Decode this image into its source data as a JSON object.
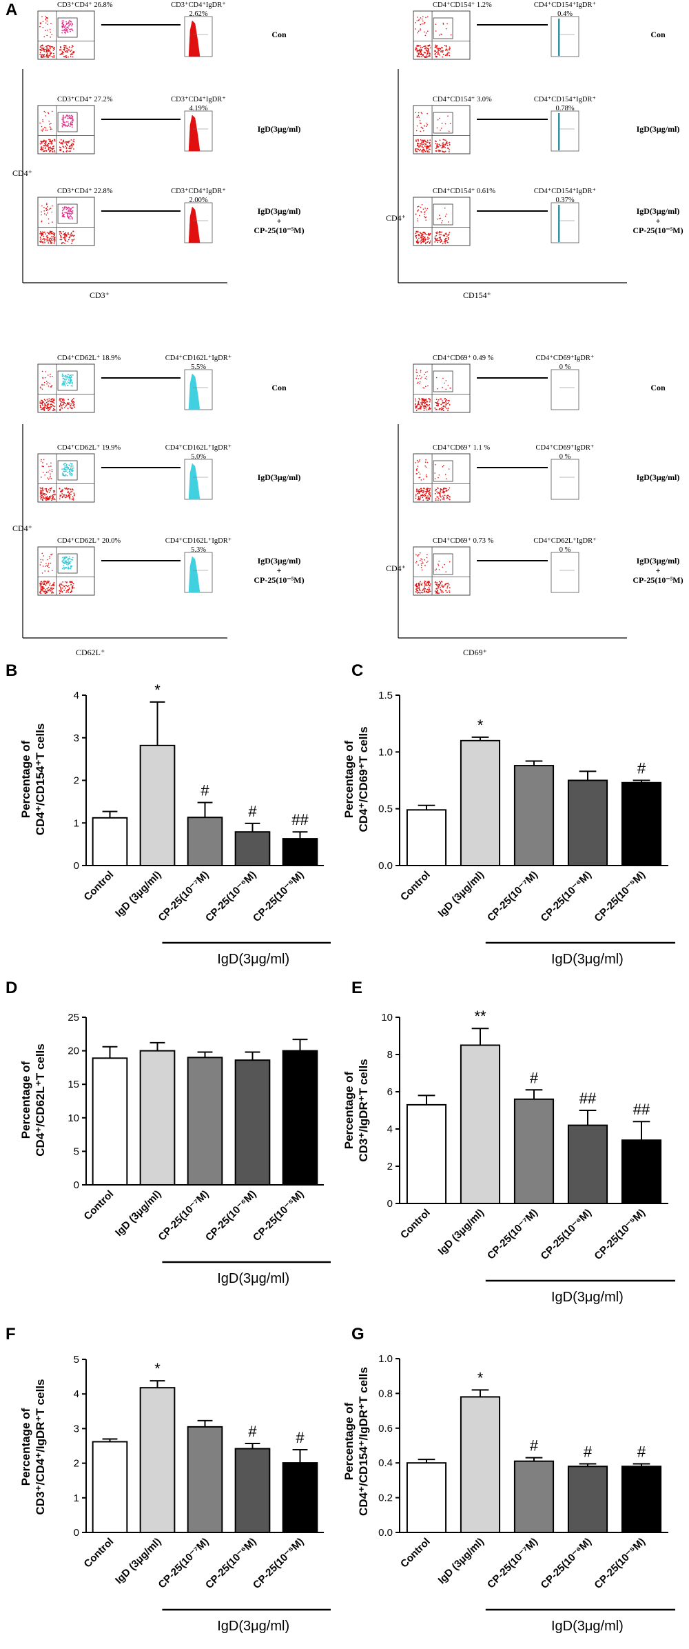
{
  "panel_a": {
    "letter": "A",
    "groups": [
      {
        "name": "cd3",
        "y_axis": "CD4⁺",
        "x_axis": "CD3⁺",
        "rows": [
          {
            "scatter_label": "CD3⁺CD4⁺  26.8%",
            "hist_label_1": "CD3⁺CD4⁺IgDR⁺",
            "hist_label_2": "2.62%",
            "condition_lines": [
              "Con"
            ]
          },
          {
            "scatter_label": "CD3⁺CD4⁺  27.2%",
            "hist_label_1": "CD3⁺CD4⁺IgDR⁺",
            "hist_label_2": "4.19%",
            "condition_lines": [
              "IgD(3μg/ml)"
            ]
          },
          {
            "scatter_label": "CD3⁺CD4⁺  22.8%",
            "hist_label_1": "CD3⁺CD4⁺IgDR⁺",
            "hist_label_2": "2.00%",
            "condition_lines": [
              "IgD(3μg/ml)",
              "+",
              "CP-25(10⁻⁵M)"
            ]
          }
        ]
      },
      {
        "name": "cd154",
        "y_axis": "CD4⁺",
        "x_axis": "CD154⁺",
        "rows": [
          {
            "scatter_label": "CD4⁺CD154⁺  1.2%",
            "hist_label_1": "CD4⁺CD154⁺IgDR⁺",
            "hist_label_2": "0.4%",
            "condition_lines": [
              "Con"
            ]
          },
          {
            "scatter_label": "CD4⁺CD154⁺ 3.0%",
            "hist_label_1": "CD4⁺CD154⁺IgDR⁺",
            "hist_label_2": "0.78%",
            "condition_lines": [
              "IgD(3μg/ml)"
            ]
          },
          {
            "scatter_label": "CD4⁺CD154⁺ 0.61%",
            "hist_label_1": "CD4⁺CD154⁺IgDR⁺",
            "hist_label_2": "0.37%",
            "condition_lines": [
              "IgD(3μg/ml)",
              "+",
              "CP-25(10⁻⁵M)"
            ]
          }
        ]
      },
      {
        "name": "cd62l",
        "y_axis": "CD4⁺",
        "x_axis": "CD62L⁺",
        "rows": [
          {
            "scatter_label": "CD4⁺CD62L⁺  18.9%",
            "hist_label_1": "CD4⁺CD162L⁺IgDR⁺",
            "hist_label_2": "5.5%",
            "condition_lines": [
              "Con"
            ]
          },
          {
            "scatter_label": "CD4⁺CD62L⁺  19.9%",
            "hist_label_1": "CD4⁺CD162L⁺IgDR⁺",
            "hist_label_2": "5.0%",
            "condition_lines": [
              "IgD(3μg/ml)"
            ]
          },
          {
            "scatter_label": "CD4⁺CD62L⁺  20.0%",
            "hist_label_1": "CD4⁺CD162L⁺IgDR⁺",
            "hist_label_2": "5.3%",
            "condition_lines": [
              "IgD(3μg/ml)",
              "+",
              "CP-25(10⁻⁵M)"
            ]
          }
        ]
      },
      {
        "name": "cd69",
        "y_axis": "CD4⁺",
        "x_axis": "CD69⁺",
        "rows": [
          {
            "scatter_label": "CD4⁺CD69⁺  0.49 %",
            "hist_label_1": "CD4⁺CD69⁺IgDR⁺",
            "hist_label_2": "0 %",
            "condition_lines": [
              "Con"
            ]
          },
          {
            "scatter_label": "CD4⁺CD69⁺  1.1 %",
            "hist_label_1": "CD4⁺CD69⁺IgDR⁺",
            "hist_label_2": "0 %",
            "condition_lines": [
              "IgD(3μg/ml)"
            ]
          },
          {
            "scatter_label": "CD4⁺CD69⁺  0.73 %",
            "hist_label_1": "CD4⁺CD62L⁺IgDR⁺",
            "hist_label_2": "0 %",
            "condition_lines": [
              "IgD(3μg/ml)",
              "+",
              "CP-25(10⁻⁵M)"
            ]
          }
        ]
      }
    ]
  },
  "colors": {
    "axis": "#000000",
    "bar_fills": [
      "#ffffff",
      "#d4d4d4",
      "#808080",
      "#565656",
      "#000000"
    ],
    "dot_red": "#e01010",
    "dot_magenta": "#e0308a",
    "dot_cyan": "#30c8d8",
    "hist_red": "#e01010",
    "hist_teal": "#3a8fa0",
    "hist_cyan": "#40d0e0"
  },
  "chart_data": [
    {
      "panel": "B",
      "type": "bar",
      "ylabel_lines": [
        "Percentage of",
        "CD4⁺/CD154⁺T cells"
      ],
      "categories": [
        "Control",
        "IgD (3μg/ml)",
        "CP-25(10⁻⁷M)",
        "CP-25(10⁻⁶M)",
        "CP-25(10⁻⁵M)"
      ],
      "values": [
        1.12,
        2.82,
        1.13,
        0.79,
        0.63
      ],
      "errors": [
        0.15,
        1.02,
        0.35,
        0.2,
        0.16
      ],
      "significance": [
        "",
        "*",
        "#",
        "#",
        "##"
      ],
      "ylim": [
        0,
        4
      ],
      "yticks": [
        0,
        1,
        2,
        3,
        4
      ],
      "bracket_label": "IgD(3μg/ml)"
    },
    {
      "panel": "C",
      "type": "bar",
      "ylabel_lines": [
        "Percentage of",
        "CD4⁺/CD69⁺T cells"
      ],
      "categories": [
        "Control",
        "IgD (3μg/ml)",
        "CP-25(10⁻⁷M)",
        "CP-25(10⁻⁶M)",
        "CP-25(10⁻⁵M)"
      ],
      "values": [
        0.49,
        1.1,
        0.88,
        0.75,
        0.73
      ],
      "errors": [
        0.04,
        0.03,
        0.04,
        0.08,
        0.02
      ],
      "significance": [
        "",
        "*",
        "",
        "",
        "#"
      ],
      "ylim": [
        0,
        1.5
      ],
      "yticks": [
        0.0,
        0.5,
        1.0,
        1.5
      ],
      "bracket_label": "IgD(3μg/ml)"
    },
    {
      "panel": "D",
      "type": "bar",
      "ylabel_lines": [
        "Percentage of",
        "CD4⁺/CD62L⁺T cells"
      ],
      "categories": [
        "Control",
        "IgD (3μg/ml)",
        "CP-25(10⁻⁷M)",
        "CP-25(10⁻⁶M)",
        "CP-25(10⁻⁵M)"
      ],
      "values": [
        18.9,
        20.0,
        19.0,
        18.6,
        20.0
      ],
      "errors": [
        1.7,
        1.2,
        0.8,
        1.2,
        1.7
      ],
      "significance": [
        "",
        "",
        "",
        "",
        ""
      ],
      "ylim": [
        0,
        25
      ],
      "yticks": [
        0,
        5,
        10,
        15,
        20,
        25
      ],
      "bracket_label": "IgD(3μg/ml)"
    },
    {
      "panel": "E",
      "type": "bar",
      "ylabel_lines": [
        "Percentage of",
        "CD3⁺/IgDR⁺T cells"
      ],
      "categories": [
        "Control",
        "IgD (3μg/ml)",
        "CP-25(10⁻⁷M)",
        "CP-25(10⁻⁶M)",
        "CP-25(10⁻⁵M)"
      ],
      "values": [
        5.3,
        8.5,
        5.6,
        4.2,
        3.4
      ],
      "errors": [
        0.5,
        0.9,
        0.5,
        0.8,
        1.0
      ],
      "significance": [
        "",
        "**",
        "#",
        "##",
        "##"
      ],
      "ylim": [
        0,
        10
      ],
      "yticks": [
        0,
        2,
        4,
        6,
        8,
        10
      ],
      "bracket_label": "IgD(3μg/ml)"
    },
    {
      "panel": "F",
      "type": "bar",
      "ylabel_lines": [
        "Percentage of",
        "CD3⁺/CD4⁺/IgDR⁺T cells"
      ],
      "categories": [
        "Control",
        "IgD (3μg/ml)",
        "CP-25(10⁻⁷M)",
        "CP-25(10⁻⁶M)",
        "CP-25(10⁻⁵M)"
      ],
      "values": [
        2.62,
        4.18,
        3.05,
        2.42,
        2.01
      ],
      "errors": [
        0.08,
        0.2,
        0.18,
        0.15,
        0.38
      ],
      "significance": [
        "",
        "*",
        "",
        "#",
        "#"
      ],
      "ylim": [
        0,
        5
      ],
      "yticks": [
        0,
        1,
        2,
        3,
        4,
        5
      ],
      "bracket_label": "IgD(3μg/ml)"
    },
    {
      "panel": "G",
      "type": "bar",
      "ylabel_lines": [
        "Percentage of",
        "CD4⁺/CD154⁺/IgDR⁺T cells"
      ],
      "categories": [
        "Control",
        "IgD (3μg/ml)",
        "CP-25(10⁻⁷M)",
        "CP-25(10⁻⁶M)",
        "CP-25(10⁻⁵M)"
      ],
      "values": [
        0.4,
        0.78,
        0.41,
        0.38,
        0.38
      ],
      "errors": [
        0.02,
        0.04,
        0.02,
        0.015,
        0.015
      ],
      "significance": [
        "",
        "*",
        "#",
        "#",
        "#"
      ],
      "ylim": [
        0,
        1.0
      ],
      "yticks": [
        0.0,
        0.2,
        0.4,
        0.6,
        0.8,
        1.0
      ],
      "bracket_label": "IgD(3μg/ml)"
    }
  ]
}
